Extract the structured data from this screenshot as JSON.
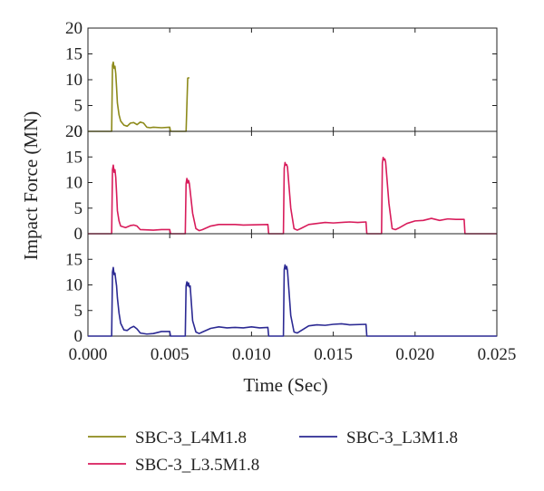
{
  "chart_data": {
    "type": "line",
    "xlabel": "Time (Sec)",
    "ylabel": "Impact Force (MN)",
    "xlim": [
      0.0,
      0.025
    ],
    "x_ticks": [
      "0.000",
      "0.005",
      "0.010",
      "0.015",
      "0.020",
      "0.025"
    ],
    "panels": [
      {
        "series": "SBC-3_L4M1.8",
        "ylim": [
          0,
          20
        ],
        "y_ticks": [
          "20",
          "15",
          "10",
          "5",
          "0"
        ]
      },
      {
        "series": "SBC-3_L3.5M1.8",
        "ylim": [
          0,
          20
        ],
        "y_ticks": [
          "20",
          "15",
          "10",
          "5",
          "0"
        ]
      },
      {
        "series": "SBC-3_L3M1.8",
        "ylim": [
          0,
          20
        ],
        "y_ticks": [
          "15",
          "10",
          "5",
          "0"
        ]
      }
    ],
    "series": [
      {
        "name": "SBC-3_L4M1.8",
        "color": "#8d8a1a",
        "points": [
          [
            0.0,
            0
          ],
          [
            0.00145,
            0
          ],
          [
            0.0015,
            12.8
          ],
          [
            0.00155,
            13.4
          ],
          [
            0.0016,
            12.2
          ],
          [
            0.00165,
            12.6
          ],
          [
            0.0017,
            11.2
          ],
          [
            0.00175,
            8.5
          ],
          [
            0.0018,
            5.5
          ],
          [
            0.0019,
            3.2
          ],
          [
            0.002,
            2.0
          ],
          [
            0.0022,
            1.2
          ],
          [
            0.0024,
            1.0
          ],
          [
            0.0026,
            1.6
          ],
          [
            0.0028,
            1.7
          ],
          [
            0.003,
            1.3
          ],
          [
            0.0032,
            1.8
          ],
          [
            0.0034,
            1.6
          ],
          [
            0.0036,
            0.8
          ],
          [
            0.0038,
            0.7
          ],
          [
            0.004,
            0.8
          ],
          [
            0.0045,
            0.7
          ],
          [
            0.005,
            0.8
          ],
          [
            0.00505,
            0.0
          ],
          [
            0.0059,
            0.0
          ],
          [
            0.006,
            0.0
          ],
          [
            0.0061,
            10.3
          ],
          [
            0.0062,
            10.4
          ]
        ]
      },
      {
        "name": "SBC-3_L3.5M1.8",
        "color": "#d81c5b",
        "points": [
          [
            0.0,
            0
          ],
          [
            0.00145,
            0
          ],
          [
            0.0015,
            12.5
          ],
          [
            0.00155,
            13.4
          ],
          [
            0.0016,
            12.0
          ],
          [
            0.00165,
            12.5
          ],
          [
            0.0017,
            11.0
          ],
          [
            0.00175,
            8.0
          ],
          [
            0.0018,
            4.5
          ],
          [
            0.0019,
            2.5
          ],
          [
            0.002,
            1.5
          ],
          [
            0.0023,
            1.2
          ],
          [
            0.0026,
            1.6
          ],
          [
            0.0028,
            1.7
          ],
          [
            0.003,
            1.5
          ],
          [
            0.0032,
            0.8
          ],
          [
            0.004,
            0.7
          ],
          [
            0.0045,
            0.8
          ],
          [
            0.005,
            0.8
          ],
          [
            0.00505,
            0
          ],
          [
            0.00595,
            0
          ],
          [
            0.006,
            9.8
          ],
          [
            0.00605,
            10.8
          ],
          [
            0.0061,
            9.9
          ],
          [
            0.00615,
            10.4
          ],
          [
            0.0062,
            9.8
          ],
          [
            0.0064,
            4.0
          ],
          [
            0.0066,
            1.0
          ],
          [
            0.0068,
            0.6
          ],
          [
            0.007,
            0.8
          ],
          [
            0.0075,
            1.5
          ],
          [
            0.008,
            1.8
          ],
          [
            0.009,
            1.8
          ],
          [
            0.0095,
            1.7
          ],
          [
            0.011,
            1.8
          ],
          [
            0.01105,
            0
          ],
          [
            0.01195,
            0
          ],
          [
            0.012,
            12.8
          ],
          [
            0.01205,
            13.9
          ],
          [
            0.0121,
            13.4
          ],
          [
            0.01215,
            13.5
          ],
          [
            0.0122,
            13.0
          ],
          [
            0.0124,
            5.0
          ],
          [
            0.0126,
            1.0
          ],
          [
            0.0128,
            0.7
          ],
          [
            0.013,
            1.0
          ],
          [
            0.0135,
            1.8
          ],
          [
            0.014,
            2.0
          ],
          [
            0.0145,
            2.2
          ],
          [
            0.015,
            2.1
          ],
          [
            0.016,
            2.3
          ],
          [
            0.0165,
            2.2
          ],
          [
            0.017,
            2.3
          ],
          [
            0.01705,
            0
          ],
          [
            0.01795,
            0
          ],
          [
            0.018,
            13.8
          ],
          [
            0.01805,
            14.9
          ],
          [
            0.0181,
            14.4
          ],
          [
            0.01815,
            14.6
          ],
          [
            0.0182,
            14.0
          ],
          [
            0.0184,
            6.0
          ],
          [
            0.0186,
            1.0
          ],
          [
            0.0188,
            0.8
          ],
          [
            0.019,
            1.1
          ],
          [
            0.0195,
            2.0
          ],
          [
            0.02,
            2.5
          ],
          [
            0.0205,
            2.6
          ],
          [
            0.021,
            3.0
          ],
          [
            0.0215,
            2.6
          ],
          [
            0.022,
            2.9
          ],
          [
            0.0225,
            2.8
          ],
          [
            0.023,
            2.8
          ],
          [
            0.02305,
            0
          ],
          [
            0.025,
            0
          ]
        ]
      },
      {
        "name": "SBC-3_L3M1.8",
        "color": "#2c2a93",
        "points": [
          [
            0.0,
            0
          ],
          [
            0.00145,
            0
          ],
          [
            0.0015,
            12.5
          ],
          [
            0.00155,
            13.4
          ],
          [
            0.0016,
            12.0
          ],
          [
            0.00165,
            12.3
          ],
          [
            0.0017,
            11.0
          ],
          [
            0.00175,
            9.8
          ],
          [
            0.0018,
            7.5
          ],
          [
            0.0019,
            4.5
          ],
          [
            0.002,
            2.5
          ],
          [
            0.0022,
            1.2
          ],
          [
            0.0024,
            1.1
          ],
          [
            0.0026,
            1.6
          ],
          [
            0.0028,
            1.9
          ],
          [
            0.003,
            1.4
          ],
          [
            0.0032,
            0.6
          ],
          [
            0.0036,
            0.4
          ],
          [
            0.004,
            0.5
          ],
          [
            0.0045,
            0.9
          ],
          [
            0.005,
            0.9
          ],
          [
            0.00505,
            0
          ],
          [
            0.00595,
            0
          ],
          [
            0.006,
            9.8
          ],
          [
            0.00605,
            10.6
          ],
          [
            0.0061,
            9.8
          ],
          [
            0.00615,
            10.4
          ],
          [
            0.0062,
            9.6
          ],
          [
            0.00625,
            9.8
          ],
          [
            0.0064,
            3.0
          ],
          [
            0.0066,
            0.8
          ],
          [
            0.0068,
            0.5
          ],
          [
            0.007,
            0.8
          ],
          [
            0.0075,
            1.5
          ],
          [
            0.008,
            1.8
          ],
          [
            0.0085,
            1.6
          ],
          [
            0.009,
            1.7
          ],
          [
            0.0095,
            1.6
          ],
          [
            0.01,
            1.8
          ],
          [
            0.0105,
            1.6
          ],
          [
            0.011,
            1.7
          ],
          [
            0.01105,
            0
          ],
          [
            0.01195,
            0
          ],
          [
            0.012,
            13.0
          ],
          [
            0.01205,
            13.9
          ],
          [
            0.0121,
            13.1
          ],
          [
            0.01215,
            13.6
          ],
          [
            0.0122,
            12.8
          ],
          [
            0.0124,
            4.0
          ],
          [
            0.0126,
            0.8
          ],
          [
            0.0128,
            0.6
          ],
          [
            0.013,
            1.0
          ],
          [
            0.0135,
            2.0
          ],
          [
            0.014,
            2.2
          ],
          [
            0.0145,
            2.1
          ],
          [
            0.015,
            2.3
          ],
          [
            0.0155,
            2.4
          ],
          [
            0.016,
            2.2
          ],
          [
            0.017,
            2.3
          ],
          [
            0.01705,
            0
          ],
          [
            0.025,
            0
          ]
        ]
      }
    ]
  }
}
